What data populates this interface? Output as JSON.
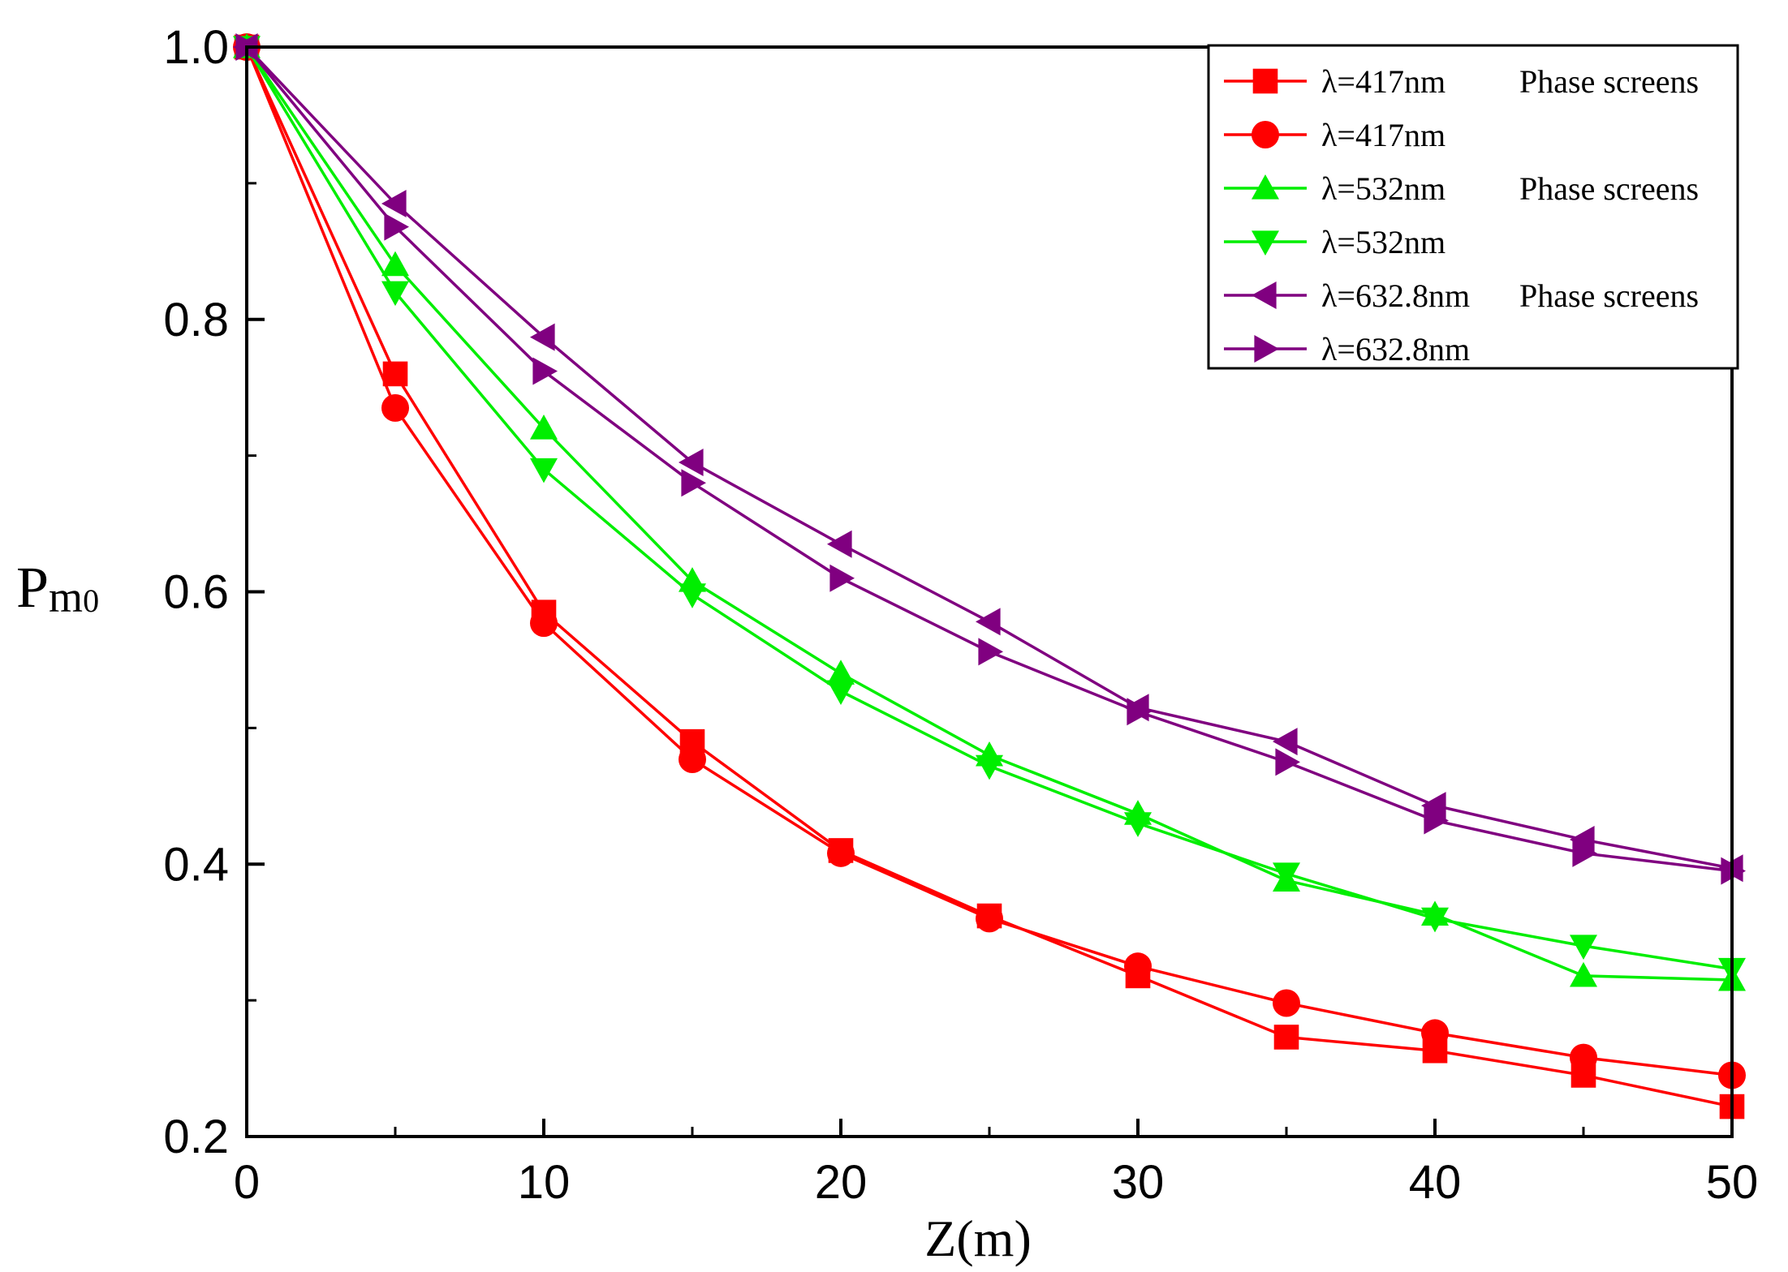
{
  "chart_data": {
    "type": "line",
    "title": "",
    "xlabel": "Z(m)",
    "ylabel": {
      "main": "P",
      "sub_m": "m",
      "sub_0": "0"
    },
    "xlim": [
      0,
      50
    ],
    "ylim": [
      0.2,
      1.0
    ],
    "xticks": [
      0,
      10,
      20,
      30,
      40,
      50
    ],
    "xtick_labels": [
      "0",
      "10",
      "20",
      "30",
      "40",
      "50"
    ],
    "yticks": [
      0.2,
      0.4,
      0.6,
      0.8,
      1.0
    ],
    "ytick_labels": [
      "0.2",
      "0.4",
      "0.6",
      "0.8",
      "1.0"
    ],
    "grid": false,
    "legend_position": "top-right",
    "x": [
      0,
      5,
      10,
      15,
      20,
      25,
      30,
      35,
      40,
      45,
      50
    ],
    "series": [
      {
        "name": "λ=417nm",
        "suffix": "Phase screens",
        "color": "#ff0000",
        "marker": "square",
        "values": [
          1.0,
          0.76,
          0.585,
          0.49,
          0.41,
          0.362,
          0.318,
          0.273,
          0.263,
          0.245,
          0.222
        ]
      },
      {
        "name": "λ=417nm",
        "suffix": "",
        "color": "#ff0000",
        "marker": "circle",
        "values": [
          1.0,
          0.735,
          0.577,
          0.477,
          0.408,
          0.36,
          0.325,
          0.298,
          0.276,
          0.258,
          0.245
        ]
      },
      {
        "name": "λ=532nm",
        "suffix": "Phase screens",
        "color": "#00ee00",
        "marker": "triangle-up",
        "values": [
          1.0,
          0.84,
          0.72,
          0.608,
          0.54,
          0.48,
          0.437,
          0.388,
          0.363,
          0.318,
          0.315
        ]
      },
      {
        "name": "λ=532nm",
        "suffix": "",
        "color": "#00ee00",
        "marker": "triangle-down",
        "values": [
          1.0,
          0.82,
          0.69,
          0.598,
          0.527,
          0.472,
          0.43,
          0.393,
          0.36,
          0.34,
          0.323
        ]
      },
      {
        "name": "λ=632.8nm",
        "suffix": "Phase screens",
        "color": "#800080",
        "marker": "triangle-left",
        "values": [
          1.0,
          0.885,
          0.787,
          0.695,
          0.635,
          0.578,
          0.515,
          0.49,
          0.443,
          0.418,
          0.397
        ]
      },
      {
        "name": "λ=632.8nm",
        "suffix": "",
        "color": "#800080",
        "marker": "triangle-right",
        "values": [
          1.0,
          0.868,
          0.762,
          0.68,
          0.61,
          0.556,
          0.512,
          0.475,
          0.432,
          0.408,
          0.395
        ]
      }
    ]
  }
}
